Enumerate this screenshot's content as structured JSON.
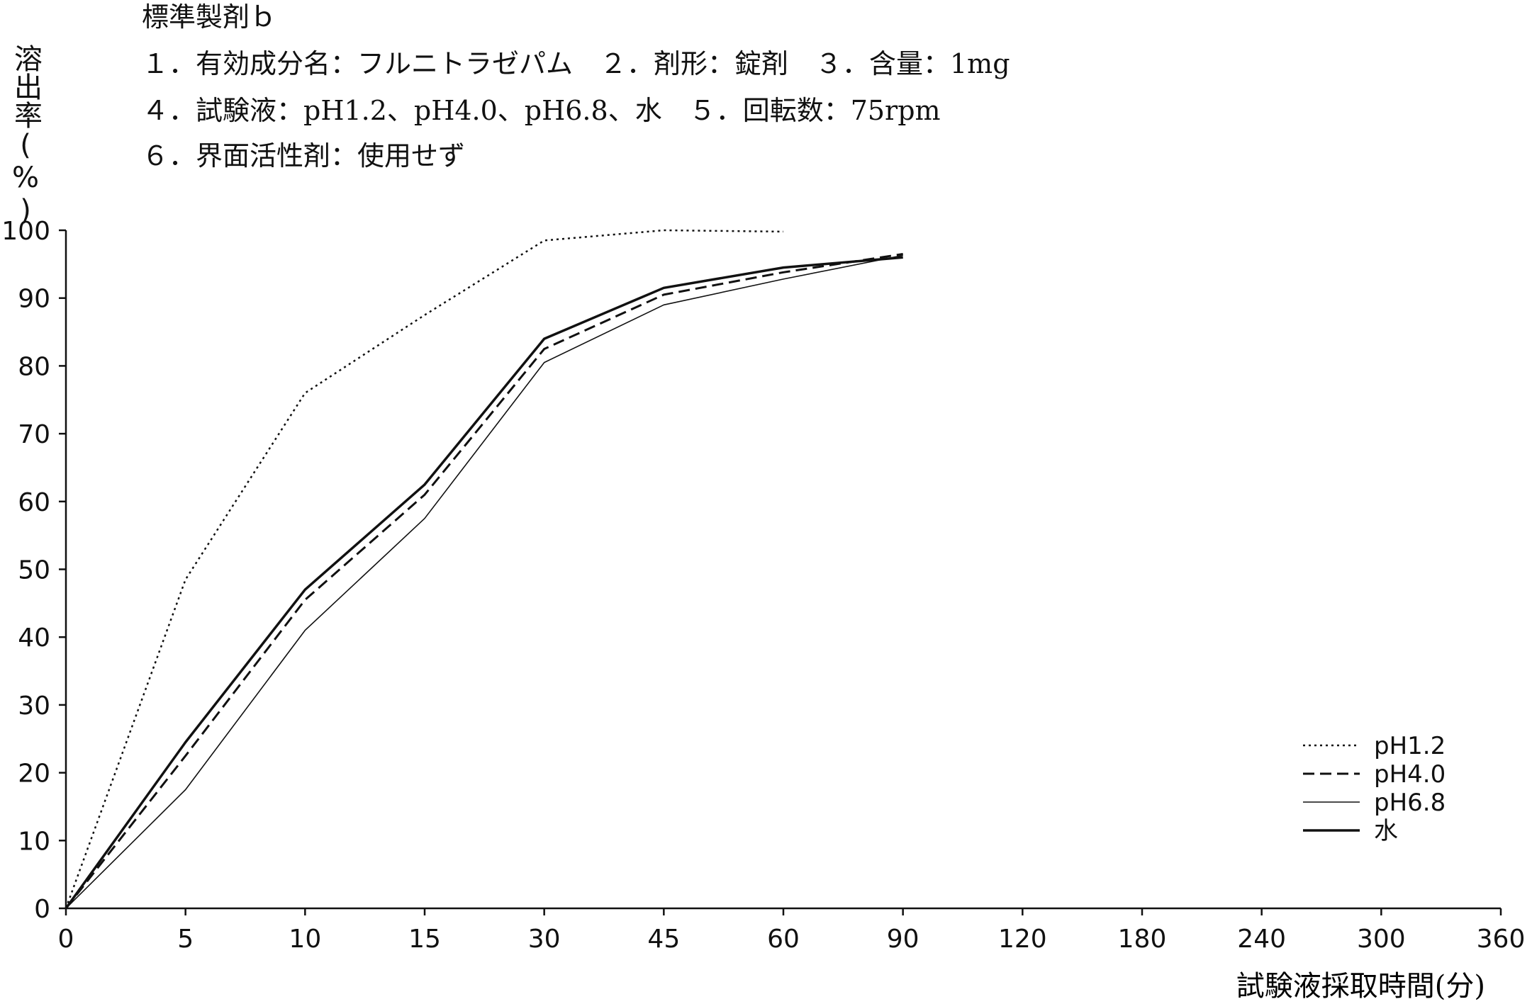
{
  "header": {
    "line1": "標準製剤ｂ",
    "line2": "１．有効成分名：フルニトラゼパム　２．剤形：錠剤　３．含量：1mg",
    "line3": "４．試験液：pH1.2、pH4.0、pH6.8、水　５．回転数：75rpm",
    "line4": "６．界面活性剤：使用せず"
  },
  "colors": {
    "line": "#111111",
    "background": "#ffffff"
  },
  "chart_data": {
    "type": "line",
    "title": "",
    "xlabel": "試験液採取時間(分)",
    "ylabel": "溶出率(%)",
    "x": [
      "0",
      "5",
      "10",
      "15",
      "30",
      "45",
      "60",
      "90",
      "120",
      "180",
      "240",
      "300",
      "360"
    ],
    "ylim": [
      0,
      100
    ],
    "yticks": [
      "0",
      "10",
      "20",
      "30",
      "40",
      "50",
      "60",
      "70",
      "80",
      "90",
      "100"
    ],
    "grid": false,
    "legend_position": "bottom-right",
    "series": [
      {
        "name": "pH1.2",
        "style": "dotted",
        "x": [
          0,
          5,
          10,
          15,
          30,
          45,
          60
        ],
        "values": [
          0,
          48.5,
          76,
          87.5,
          98.5,
          100,
          99.8
        ]
      },
      {
        "name": "pH4.0",
        "style": "dashed",
        "x": [
          0,
          5,
          10,
          15,
          30,
          45,
          60,
          90
        ],
        "values": [
          0,
          22.5,
          45.5,
          61,
          82.5,
          90.5,
          93.8,
          96.5
        ]
      },
      {
        "name": "pH6.8",
        "style": "thin",
        "x": [
          0,
          5,
          10,
          15,
          30,
          45,
          60,
          90
        ],
        "values": [
          0,
          17.5,
          41,
          57.5,
          80.5,
          89,
          92.8,
          96.3
        ]
      },
      {
        "name": "水",
        "style": "solid",
        "x": [
          0,
          5,
          10,
          15,
          30,
          45,
          60,
          90
        ],
        "values": [
          0,
          24.5,
          47,
          62.5,
          84,
          91.5,
          94.5,
          96
        ]
      }
    ]
  }
}
